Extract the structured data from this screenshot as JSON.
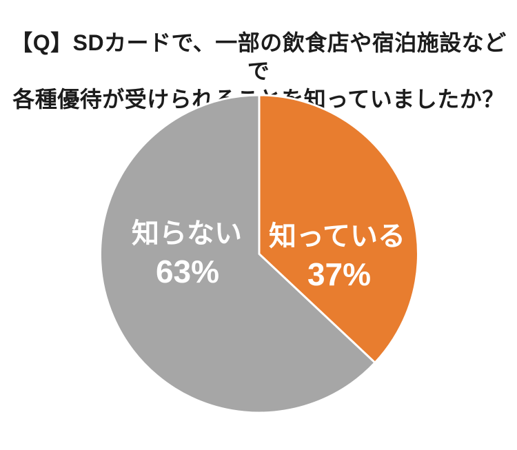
{
  "page": {
    "background_color": "#FFFFFF"
  },
  "chart_data": {
    "type": "pie",
    "title": "【Q】SDカードで、一部の飲食店や宿泊施設などで各種優待が受けられることを知っていましたか？",
    "title_lines": [
      "【Q】SDカードで、一部の飲食店や宿泊施設などで",
      "各種優待が受けられることを知っていましたか？"
    ],
    "title_color": "#1C1C1C",
    "slices": [
      {
        "id": "shitteiru",
        "label": "知っている",
        "value": 37,
        "pct_label": "37%",
        "color": "#E87D2F"
      },
      {
        "id": "shiranai",
        "label": "知らない",
        "value": 63,
        "pct_label": "63%",
        "color": "#A6A6A6"
      }
    ],
    "start_angle_deg": 0,
    "direction": "clockwise",
    "legend": "none",
    "data_labels": "inside",
    "label_color": "#FFFFFF",
    "slice_divider_color": "#FFFFFF"
  }
}
